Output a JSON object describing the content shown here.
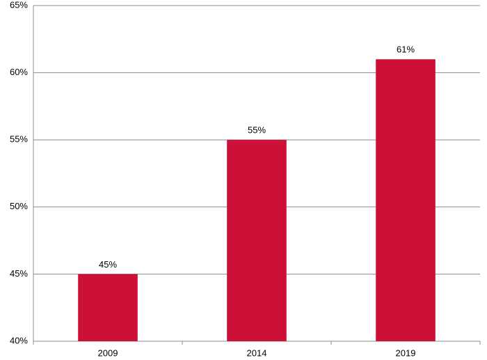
{
  "chart_data": {
    "type": "bar",
    "categories": [
      "2009",
      "2014",
      "2019"
    ],
    "values": [
      45,
      55,
      61
    ],
    "value_labels": [
      "45%",
      "55%",
      "61%"
    ],
    "color": "#cc1038",
    "ylim": [
      40,
      65
    ],
    "yticks": [
      {
        "value": 40,
        "label": "40%"
      },
      {
        "value": 45,
        "label": "45%"
      },
      {
        "value": 50,
        "label": "50%"
      },
      {
        "value": 55,
        "label": "55%"
      },
      {
        "value": 60,
        "label": "60%"
      },
      {
        "value": 65,
        "label": "65%"
      }
    ],
    "grid": true
  }
}
